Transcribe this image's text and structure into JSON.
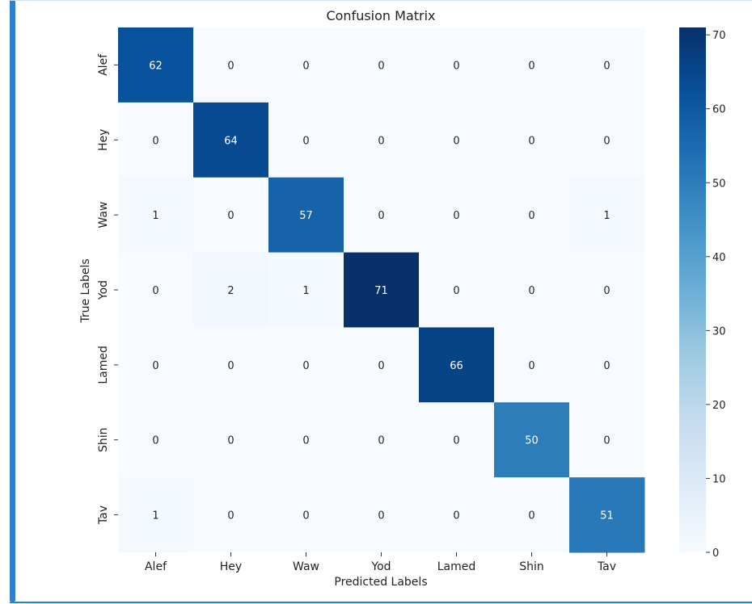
{
  "chart_data": {
    "type": "heatmap",
    "title": "Confusion Matrix",
    "xlabel": "Predicted Labels",
    "ylabel": "True Labels",
    "x_categories": [
      "Alef",
      "Hey",
      "Waw",
      "Yod",
      "Lamed",
      "Shin",
      "Tav"
    ],
    "y_categories": [
      "Alef",
      "Hey",
      "Waw",
      "Yod",
      "Lamed",
      "Shin",
      "Tav"
    ],
    "matrix": [
      [
        62,
        0,
        0,
        0,
        0,
        0,
        0
      ],
      [
        0,
        64,
        0,
        0,
        0,
        0,
        0
      ],
      [
        1,
        0,
        57,
        0,
        0,
        0,
        1
      ],
      [
        0,
        2,
        1,
        71,
        0,
        0,
        0
      ],
      [
        0,
        0,
        0,
        0,
        66,
        0,
        0
      ],
      [
        0,
        0,
        0,
        0,
        0,
        50,
        0
      ],
      [
        1,
        0,
        0,
        0,
        0,
        0,
        51
      ]
    ],
    "colorbar": {
      "min": 0,
      "max": 71,
      "ticks": [
        0,
        10,
        20,
        30,
        40,
        50,
        60,
        70
      ],
      "colormap": "Blues"
    }
  }
}
